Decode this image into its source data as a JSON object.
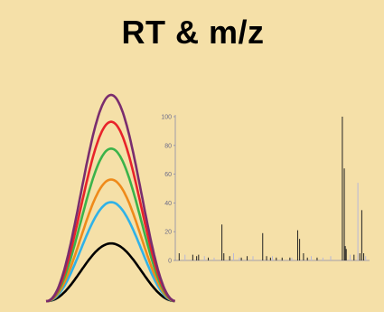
{
  "title": "RT & m/z",
  "chromatogram": {
    "curves": [
      {
        "color": "#000000",
        "peak": 0.28
      },
      {
        "color": "#2fb2e8",
        "peak": 0.48
      },
      {
        "color": "#ef8a1a",
        "peak": 0.59
      },
      {
        "color": "#3bb34a",
        "peak": 0.74
      },
      {
        "color": "#e8232a",
        "peak": 0.87
      },
      {
        "color": "#7a2d6e",
        "peak": 1.0
      }
    ]
  },
  "chart_data": {
    "type": "bar",
    "ylim": [
      0,
      100
    ],
    "yticks": [
      "100",
      "80",
      "60",
      "40",
      "20",
      "0"
    ],
    "xlim": [
      0,
      1
    ],
    "series": [
      {
        "color": "#222222",
        "peaks": [
          [
            0.02,
            5
          ],
          [
            0.09,
            4
          ],
          [
            0.11,
            3
          ],
          [
            0.12,
            4
          ],
          [
            0.17,
            2
          ],
          [
            0.24,
            25
          ],
          [
            0.25,
            5
          ],
          [
            0.28,
            3
          ],
          [
            0.34,
            2
          ],
          [
            0.37,
            3
          ],
          [
            0.45,
            19
          ],
          [
            0.47,
            3
          ],
          [
            0.49,
            2
          ],
          [
            0.52,
            2
          ],
          [
            0.55,
            2
          ],
          [
            0.59,
            2
          ],
          [
            0.63,
            21
          ],
          [
            0.64,
            15
          ],
          [
            0.66,
            5
          ],
          [
            0.68,
            2
          ],
          [
            0.73,
            2
          ],
          [
            0.86,
            100
          ],
          [
            0.87,
            64
          ],
          [
            0.875,
            10
          ],
          [
            0.88,
            8
          ],
          [
            0.92,
            4
          ],
          [
            0.95,
            5
          ],
          [
            0.96,
            35
          ],
          [
            0.97,
            5
          ]
        ]
      },
      {
        "color": "#b8b8d8",
        "peaks": [
          [
            0.05,
            4
          ],
          [
            0.15,
            3
          ],
          [
            0.2,
            2
          ],
          [
            0.3,
            5
          ],
          [
            0.33,
            2
          ],
          [
            0.4,
            3
          ],
          [
            0.5,
            3
          ],
          [
            0.6,
            2
          ],
          [
            0.7,
            3
          ],
          [
            0.76,
            2
          ],
          [
            0.8,
            3
          ],
          [
            0.9,
            4
          ],
          [
            0.94,
            54
          ],
          [
            0.98,
            3
          ]
        ]
      }
    ]
  }
}
